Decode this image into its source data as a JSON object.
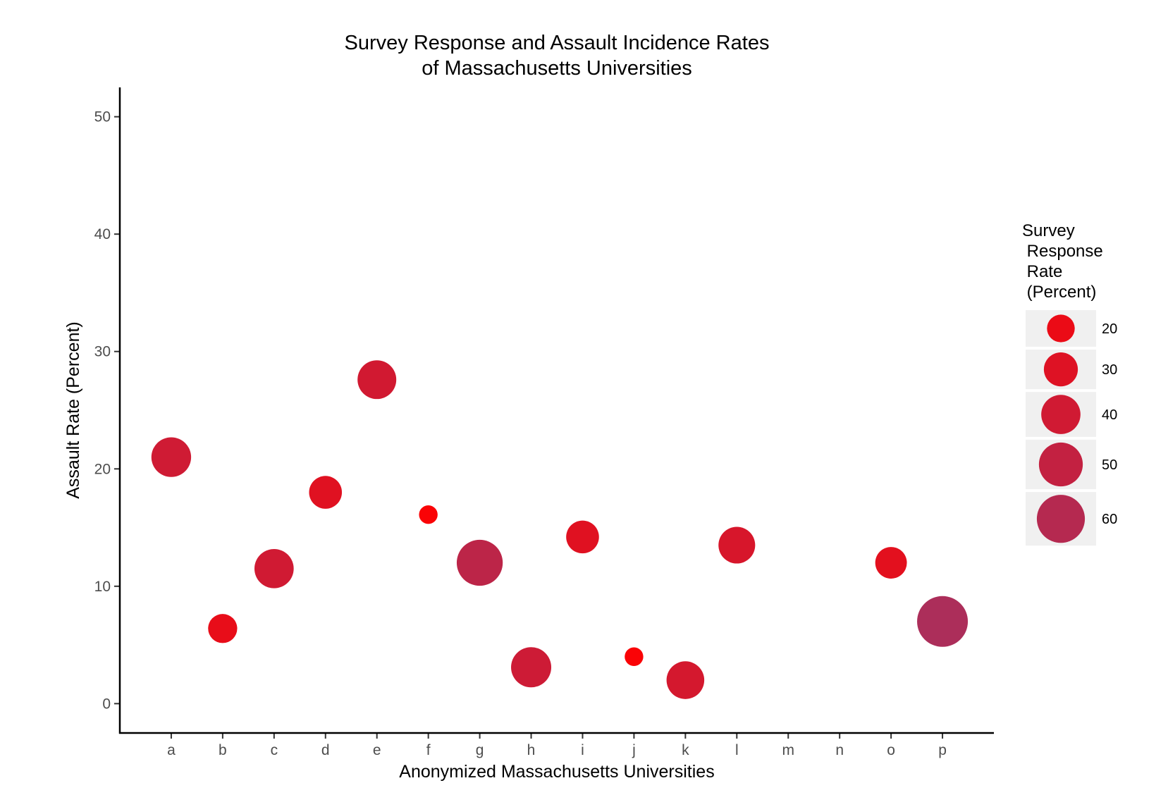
{
  "chart_data": {
    "type": "scatter",
    "title_lines": [
      "Survey Response and Assault Incidence Rates",
      "of Massachusetts Universities"
    ],
    "xlabel": "Anonymized Massachusetts Universities",
    "ylabel": "Assault Rate (Percent)",
    "categories": [
      "a",
      "b",
      "c",
      "d",
      "e",
      "f",
      "g",
      "h",
      "i",
      "j",
      "k",
      "l",
      "m",
      "n",
      "o",
      "p"
    ],
    "ylim": [
      -2.5,
      52.5
    ],
    "yticks": [
      0,
      10,
      20,
      30,
      40,
      50
    ],
    "points": [
      {
        "x": "a",
        "y": 21.0,
        "size": 41
      },
      {
        "x": "b",
        "y": 6.4,
        "size": 22
      },
      {
        "x": "c",
        "y": 11.5,
        "size": 40
      },
      {
        "x": "d",
        "y": 18.0,
        "size": 28
      },
      {
        "x": "e",
        "y": 27.6,
        "size": 39
      },
      {
        "x": "f",
        "y": 16.1,
        "size": 9
      },
      {
        "x": "g",
        "y": 12.0,
        "size": 55
      },
      {
        "x": "h",
        "y": 3.1,
        "size": 42
      },
      {
        "x": "i",
        "y": 14.2,
        "size": 28
      },
      {
        "x": "j",
        "y": 4.0,
        "size": 9
      },
      {
        "x": "k",
        "y": 2.0,
        "size": 37
      },
      {
        "x": "l",
        "y": 13.5,
        "size": 35
      },
      {
        "x": "o",
        "y": 12.0,
        "size": 26
      },
      {
        "x": "p",
        "y": 7.0,
        "size": 67
      }
    ],
    "size_legend": {
      "title_lines": [
        "Survey",
        " Response",
        " Rate",
        " (Percent)"
      ],
      "entries": [
        20,
        30,
        40,
        50,
        60
      ],
      "placement": "right"
    },
    "color_scale": {
      "low": "#ff0000",
      "high": "#a8305e",
      "low_value": 5,
      "high_value": 70
    }
  }
}
